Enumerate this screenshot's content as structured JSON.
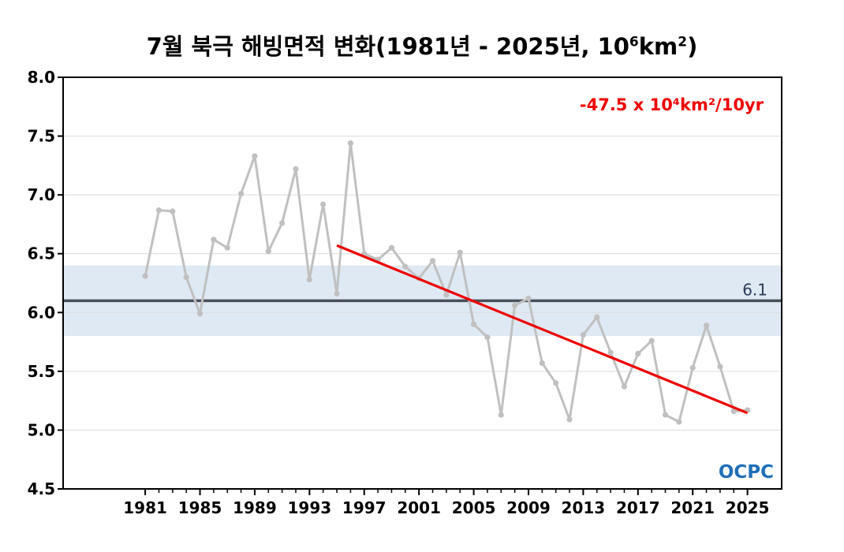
{
  "title": {
    "main": "7월 북극 해빙면적 변화(1981년 - 2025년, 10",
    "exp1": "6",
    "unit": "km",
    "exp2": "2",
    "close": ")"
  },
  "logo_text": "OCPC",
  "chart_data": {
    "type": "line",
    "title": "7월 북극 해빙면적 변화(1981년 - 2025년, 10^6km^2)",
    "x_tick_labels": [
      "1981",
      "1985",
      "1989",
      "1993",
      "1997",
      "2001",
      "2005",
      "2009",
      "2013",
      "2017",
      "2021",
      "2025"
    ],
    "y_tick_labels": [
      "4.5",
      "5.0",
      "5.5",
      "6.0",
      "6.5",
      "7.0",
      "7.5",
      "8.0"
    ],
    "xlim": [
      1975,
      2027.5
    ],
    "ylim": [
      4.5,
      8.0
    ],
    "grid": "horizontal",
    "series": [
      {
        "color": "#c0c0c0",
        "x": [
          1981,
          1982,
          1983,
          1984,
          1985,
          1986,
          1987,
          1988,
          1989,
          1990,
          1991,
          1992,
          1993,
          1994,
          1995,
          1996,
          1997,
          1998,
          1999,
          2000,
          2001,
          2002,
          2003,
          2004,
          2005,
          2006,
          2007,
          2008,
          2009,
          2010,
          2011,
          2012,
          2013,
          2014,
          2015,
          2016,
          2017,
          2018,
          2019,
          2020,
          2021,
          2022,
          2023,
          2024,
          2025
        ],
        "y": [
          6.31,
          6.87,
          6.86,
          6.3,
          5.99,
          6.62,
          6.55,
          7.01,
          7.33,
          6.52,
          6.76,
          7.22,
          6.28,
          6.92,
          6.16,
          7.44,
          6.5,
          6.45,
          6.55,
          6.39,
          6.29,
          6.44,
          6.15,
          6.51,
          5.9,
          5.79,
          5.13,
          6.06,
          6.12,
          5.57,
          5.4,
          5.09,
          5.81,
          5.96,
          5.66,
          5.37,
          5.65,
          5.76,
          5.13,
          5.07,
          5.53,
          5.89,
          5.54,
          5.16,
          5.17
        ]
      }
    ],
    "reference": {
      "value": 6.1,
      "label": "6.1",
      "band": [
        5.8,
        6.4
      ],
      "line_color": "#4a5058",
      "band_color": "#dfe9f3"
    },
    "trend": {
      "label": "-47.5 x 10⁴km²/10yr",
      "color": "#ee0000",
      "start": {
        "x": 1995,
        "y": 6.57
      },
      "end": {
        "x": 2025,
        "y": 5.145
      }
    }
  }
}
